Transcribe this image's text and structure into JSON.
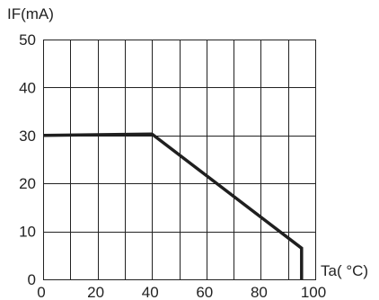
{
  "chart_data": {
    "type": "line",
    "title": "",
    "xlabel": "Ta( °C)",
    "ylabel": "IF(mA)",
    "xlim": [
      0,
      100
    ],
    "ylim": [
      0,
      50
    ],
    "x_grid_step": 10,
    "y_grid_step": 10,
    "x_tick_labels": [
      "0",
      "20",
      "40",
      "60",
      "80",
      "100"
    ],
    "x_ticks": [
      0,
      20,
      40,
      60,
      80,
      100
    ],
    "y_tick_labels": [
      "0",
      "10",
      "20",
      "30",
      "40",
      "50"
    ],
    "y_ticks": [
      0,
      10,
      20,
      30,
      40,
      50
    ],
    "grid": true,
    "series": [
      {
        "x": [
          0,
          40,
          95,
          95
        ],
        "y": [
          30,
          30.3,
          6.5,
          0
        ],
        "color": "#1f1f1f"
      }
    ]
  }
}
